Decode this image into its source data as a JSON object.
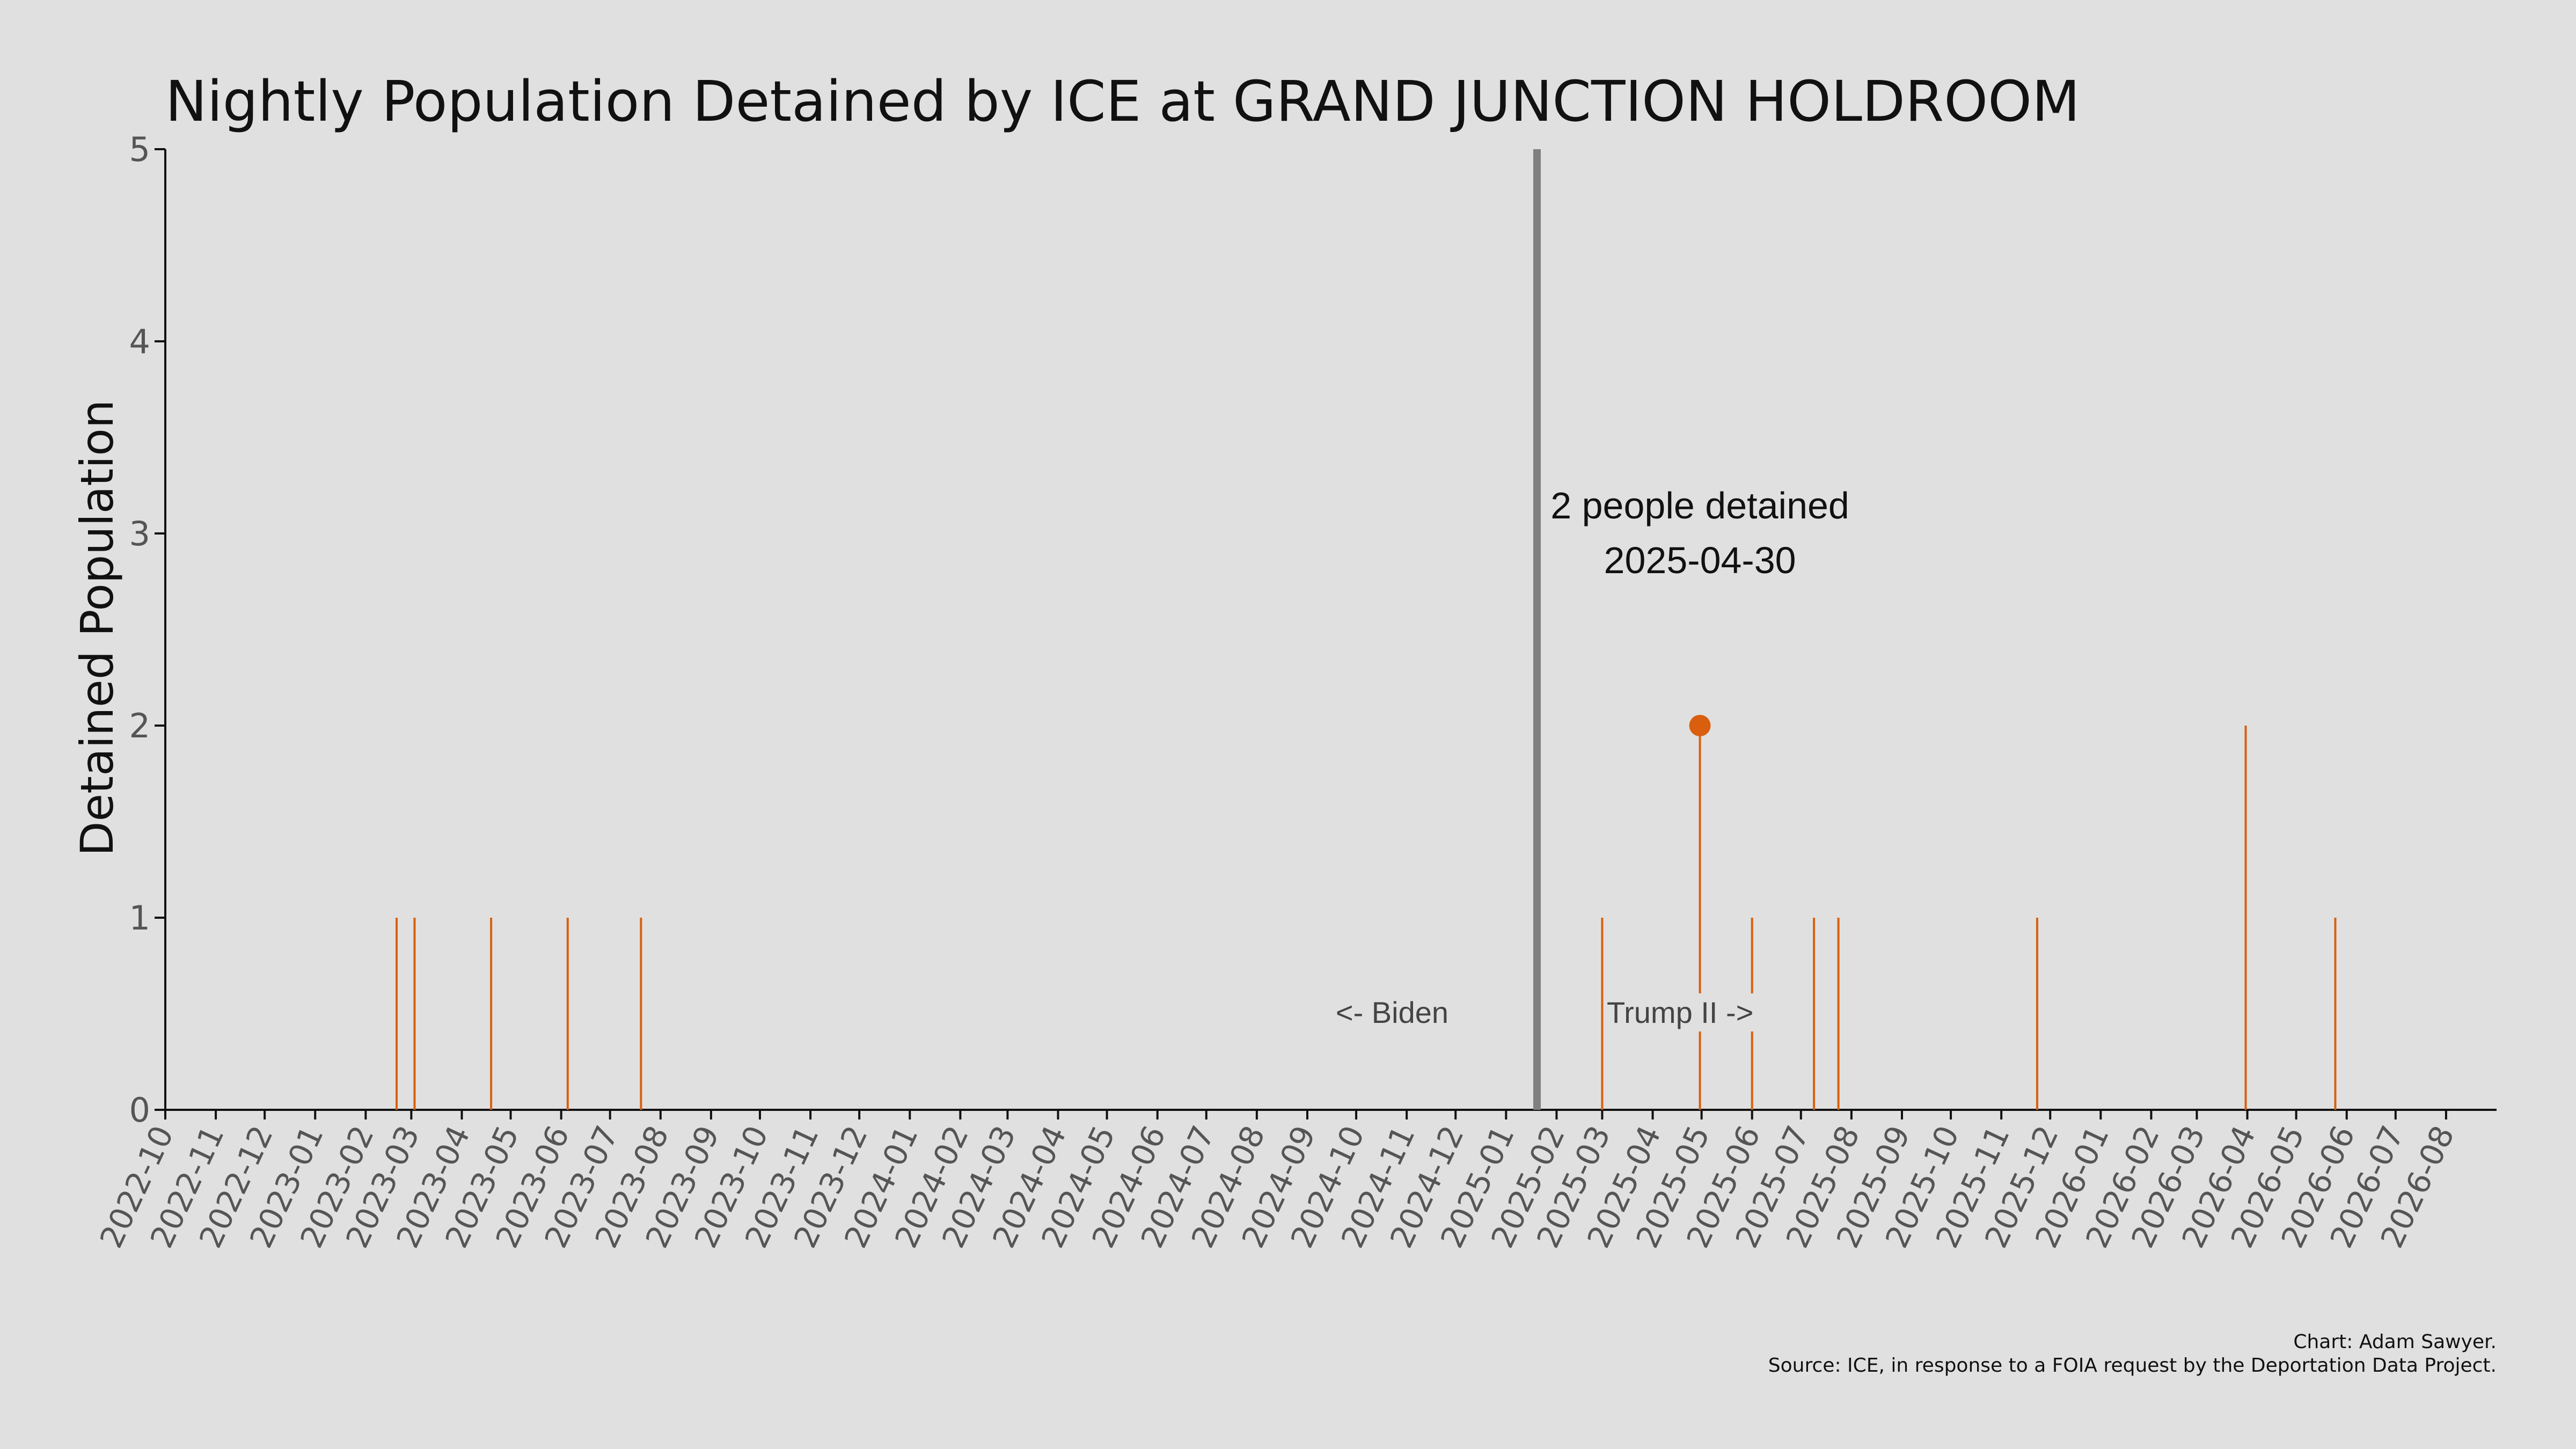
{
  "chart_data": {
    "type": "bar",
    "title": "Nightly Population Detained by ICE at GRAND JUNCTION HOLDROOM",
    "ylabel": "Detained Population",
    "xlabel": "",
    "ylim": [
      0,
      5
    ],
    "yticks": [
      "0",
      "1",
      "2",
      "3",
      "4",
      "5"
    ],
    "xlim": [
      "2022-10-01",
      "2026-09-01"
    ],
    "xticks": [
      "2022-10",
      "2022-11",
      "2022-12",
      "2023-01",
      "2023-02",
      "2023-03",
      "2023-04",
      "2023-05",
      "2023-06",
      "2023-07",
      "2023-08",
      "2023-09",
      "2023-10",
      "2023-11",
      "2023-12",
      "2024-01",
      "2024-02",
      "2024-03",
      "2024-04",
      "2024-05",
      "2024-06",
      "2024-07",
      "2024-08",
      "2024-09",
      "2024-10",
      "2024-11",
      "2024-12",
      "2025-01",
      "2025-02",
      "2025-03",
      "2025-04",
      "2025-05",
      "2025-06",
      "2025-07",
      "2025-08",
      "2025-09",
      "2025-10",
      "2025-11",
      "2025-12",
      "2026-01",
      "2026-02",
      "2026-03",
      "2026-04",
      "2026-05",
      "2026-06",
      "2026-07",
      "2026-08"
    ],
    "grid": false,
    "bar_color": "#d95f0e",
    "divider_color": "#808080",
    "points": [
      {
        "date": "2023-02-20",
        "value": 1
      },
      {
        "date": "2023-03-03",
        "value": 1
      },
      {
        "date": "2023-04-19",
        "value": 1
      },
      {
        "date": "2023-06-05",
        "value": 1
      },
      {
        "date": "2023-07-20",
        "value": 1
      },
      {
        "date": "2025-03-01",
        "value": 1
      },
      {
        "date": "2025-04-30",
        "value": 2
      },
      {
        "date": "2025-06-01",
        "value": 1
      },
      {
        "date": "2025-07-09",
        "value": 1
      },
      {
        "date": "2025-07-24",
        "value": 1
      },
      {
        "date": "2025-11-23",
        "value": 1
      },
      {
        "date": "2026-03-31",
        "value": 2
      },
      {
        "date": "2026-05-25",
        "value": 1
      }
    ],
    "highlight": {
      "date": "2025-04-30",
      "value": 2,
      "label_line1": "2 people detained",
      "label_line2": "2025-04-30"
    },
    "divider": {
      "date": "2025-01-20",
      "left_label": "<- Biden",
      "right_label": "Trump II ->"
    },
    "credit_line1": "Chart: Adam Sawyer.",
    "credit_line2": "Source: ICE, in response to a FOIA request by the Deportation Data Project."
  }
}
